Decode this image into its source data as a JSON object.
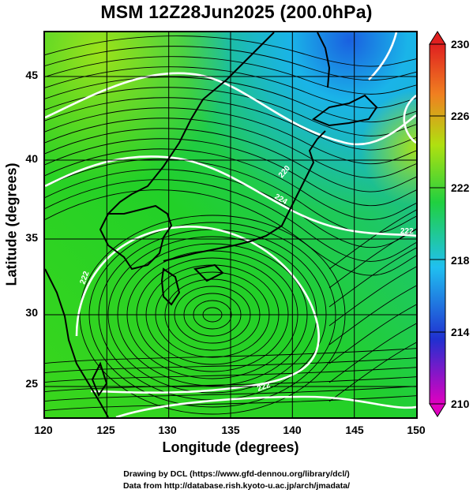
{
  "title": "MSM 12Z28Jun2025 (200.0hPa)",
  "x_axis": {
    "label": "Longitude (degrees)",
    "ticks": [
      "120",
      "125",
      "130",
      "135",
      "140",
      "145",
      "150"
    ]
  },
  "y_axis": {
    "label": "Latitude  (degrees)",
    "ticks": [
      "25",
      "30",
      "35",
      "40",
      "45"
    ]
  },
  "colorbar": {
    "ticks": [
      "230",
      "226",
      "222",
      "218",
      "214",
      "210"
    ],
    "min": 210,
    "max": 230,
    "colors": [
      "#e000c0",
      "#2030d0",
      "#20c0f0",
      "#20d040",
      "#b0e010",
      "#f08020",
      "#e02020"
    ]
  },
  "contour_labels": [
    "220",
    "222",
    "224",
    "222",
    "222"
  ],
  "credits": [
    "Drawing by DCL (https://www.gfd-dennou.org/library/dcl/)",
    "Data from http://database.rish.kyoto-u.ac.jp/arch/jmadata/"
  ],
  "chart_data": {
    "type": "heatmap",
    "title": "MSM 12Z28Jun2025 (200.0hPa)",
    "xlabel": "Longitude (degrees)",
    "ylabel": "Latitude  (degrees)",
    "xlim": [
      120,
      150
    ],
    "ylim": [
      22.4,
      47.6
    ],
    "colorbar_range": [
      210,
      230
    ],
    "colorbar_ticks": [
      210,
      214,
      218,
      222,
      226,
      230
    ],
    "features": [
      "shaded field",
      "white contours",
      "streamlines",
      "coastlines",
      "grid"
    ],
    "anticyclone_center": {
      "lon": 133.5,
      "lat": 30
    }
  }
}
